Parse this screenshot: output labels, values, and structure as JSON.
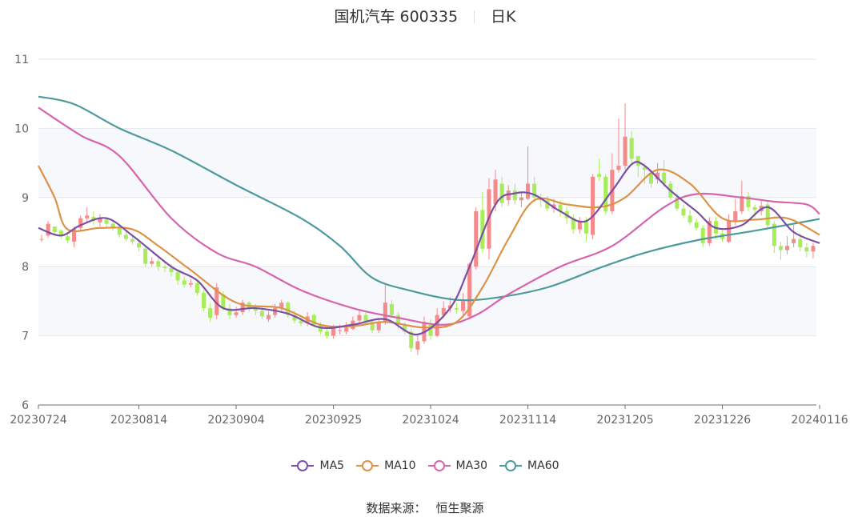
{
  "title": {
    "stock": "国机汽车 600335",
    "period": "日K"
  },
  "source": {
    "label": "数据来源：",
    "value": "恒生聚源"
  },
  "colors": {
    "up": "#f48a8a",
    "down": "#a8ec5a",
    "MA5": "#7b4fa6",
    "MA10": "#dd9245",
    "MA30": "#d566ad",
    "MA60": "#4e9a9c"
  },
  "chart_data": {
    "type": "candlestick",
    "ylim": [
      6,
      11
    ],
    "yticks": [
      6,
      7,
      8,
      9,
      10,
      11
    ],
    "xticks": [
      "20230724",
      "20230814",
      "20230904",
      "20230925",
      "20231024",
      "20231114",
      "20231205",
      "20231226",
      "20240116"
    ],
    "xtick_index": [
      0,
      15,
      30,
      45,
      60,
      75,
      90,
      105,
      120
    ],
    "legend": [
      "MA5",
      "MA10",
      "MA30",
      "MA60"
    ],
    "ohlc": [
      [
        8.4,
        8.4,
        8.46,
        8.36
      ],
      [
        8.45,
        8.62,
        8.66,
        8.42
      ],
      [
        8.58,
        8.5,
        8.58,
        8.44
      ],
      [
        8.52,
        8.46,
        8.54,
        8.4
      ],
      [
        8.44,
        8.38,
        8.48,
        8.34
      ],
      [
        8.36,
        8.54,
        8.58,
        8.28
      ],
      [
        8.56,
        8.7,
        8.74,
        8.52
      ],
      [
        8.7,
        8.74,
        8.86,
        8.64
      ],
      [
        8.72,
        8.66,
        8.8,
        8.6
      ],
      [
        8.64,
        8.7,
        8.76,
        8.58
      ],
      [
        8.68,
        8.62,
        8.72,
        8.56
      ],
      [
        8.62,
        8.56,
        8.68,
        8.52
      ],
      [
        8.56,
        8.46,
        8.62,
        8.42
      ],
      [
        8.46,
        8.4,
        8.52,
        8.36
      ],
      [
        8.4,
        8.36,
        8.46,
        8.32
      ],
      [
        8.34,
        8.28,
        8.4,
        8.22
      ],
      [
        8.26,
        8.04,
        8.3,
        8.0
      ],
      [
        8.04,
        8.08,
        8.14,
        8.0
      ],
      [
        8.08,
        8.0,
        8.12,
        7.94
      ],
      [
        8.0,
        7.98,
        8.06,
        7.92
      ],
      [
        7.98,
        7.92,
        8.04,
        7.86
      ],
      [
        7.92,
        7.8,
        7.96,
        7.74
      ],
      [
        7.8,
        7.74,
        7.86,
        7.7
      ],
      [
        7.74,
        7.76,
        7.82,
        7.7
      ],
      [
        7.76,
        7.62,
        7.8,
        7.58
      ],
      [
        7.62,
        7.4,
        7.66,
        7.36
      ],
      [
        7.4,
        7.26,
        7.48,
        7.2
      ],
      [
        7.3,
        7.7,
        7.76,
        7.24
      ],
      [
        7.6,
        7.4,
        7.64,
        7.36
      ],
      [
        7.4,
        7.3,
        7.46,
        7.24
      ],
      [
        7.3,
        7.34,
        7.42,
        7.26
      ],
      [
        7.34,
        7.48,
        7.52,
        7.3
      ],
      [
        7.48,
        7.4,
        7.5,
        7.34
      ],
      [
        7.4,
        7.36,
        7.46,
        7.3
      ],
      [
        7.36,
        7.28,
        7.42,
        7.24
      ],
      [
        7.24,
        7.3,
        7.36,
        7.2
      ],
      [
        7.3,
        7.4,
        7.46,
        7.26
      ],
      [
        7.4,
        7.48,
        7.52,
        7.36
      ],
      [
        7.48,
        7.3,
        7.5,
        7.26
      ],
      [
        7.3,
        7.22,
        7.36,
        7.18
      ],
      [
        7.22,
        7.18,
        7.28,
        7.14
      ],
      [
        7.18,
        7.28,
        7.34,
        7.14
      ],
      [
        7.3,
        7.16,
        7.32,
        7.12
      ],
      [
        7.16,
        7.06,
        7.2,
        7.02
      ],
      [
        7.06,
        7.0,
        7.12,
        6.96
      ],
      [
        7.0,
        7.12,
        7.16,
        6.96
      ],
      [
        7.08,
        7.08,
        7.16,
        7.02
      ],
      [
        7.06,
        7.12,
        7.2,
        7.02
      ],
      [
        7.1,
        7.22,
        7.28,
        7.08
      ],
      [
        7.22,
        7.3,
        7.36,
        7.18
      ],
      [
        7.3,
        7.2,
        7.36,
        7.16
      ],
      [
        7.2,
        7.08,
        7.24,
        7.04
      ],
      [
        7.08,
        7.2,
        7.26,
        7.04
      ],
      [
        7.2,
        7.48,
        7.76,
        7.16
      ],
      [
        7.46,
        7.3,
        7.52,
        7.26
      ],
      [
        7.3,
        7.16,
        7.34,
        7.1
      ],
      [
        7.16,
        7.06,
        7.2,
        7.02
      ],
      [
        7.06,
        6.82,
        7.1,
        6.76
      ],
      [
        6.8,
        6.92,
        7.0,
        6.72
      ],
      [
        6.92,
        7.2,
        7.28,
        6.88
      ],
      [
        7.16,
        7.0,
        7.24,
        6.94
      ],
      [
        7.0,
        7.3,
        7.4,
        6.98
      ],
      [
        7.3,
        7.4,
        7.5,
        7.26
      ],
      [
        7.4,
        7.44,
        7.56,
        7.34
      ],
      [
        7.4,
        7.38,
        7.48,
        7.32
      ],
      [
        7.36,
        7.5,
        7.62,
        7.3
      ],
      [
        7.28,
        8.04,
        8.06,
        7.24
      ],
      [
        8.0,
        8.8,
        8.86,
        7.96
      ],
      [
        8.82,
        8.26,
        9.08,
        8.2
      ],
      [
        8.26,
        9.12,
        9.28,
        8.1
      ],
      [
        8.9,
        9.26,
        9.4,
        8.8
      ],
      [
        9.2,
        8.92,
        9.3,
        8.86
      ],
      [
        8.96,
        9.1,
        9.18,
        8.88
      ],
      [
        9.1,
        8.96,
        9.2,
        8.9
      ],
      [
        8.96,
        9.0,
        9.06,
        8.86
      ],
      [
        8.98,
        9.2,
        9.74,
        8.96
      ],
      [
        9.2,
        9.0,
        9.3,
        8.94
      ],
      [
        9.0,
        8.96,
        9.06,
        8.86
      ],
      [
        8.96,
        8.84,
        9.02,
        8.8
      ],
      [
        8.84,
        8.9,
        8.98,
        8.78
      ],
      [
        8.9,
        8.8,
        8.96,
        8.72
      ],
      [
        8.8,
        8.7,
        8.86,
        8.62
      ],
      [
        8.7,
        8.54,
        8.76,
        8.48
      ],
      [
        8.54,
        8.66,
        8.72,
        8.48
      ],
      [
        8.66,
        8.48,
        8.72,
        8.36
      ],
      [
        8.46,
        9.3,
        9.34,
        8.4
      ],
      [
        9.34,
        9.3,
        9.56,
        9.24
      ],
      [
        9.3,
        8.8,
        9.34,
        8.76
      ],
      [
        8.8,
        9.4,
        9.64,
        8.76
      ],
      [
        9.4,
        9.46,
        10.14,
        9.36
      ],
      [
        9.46,
        9.88,
        10.36,
        9.4
      ],
      [
        9.86,
        9.56,
        9.96,
        9.5
      ],
      [
        9.6,
        9.46,
        9.52,
        9.3
      ],
      [
        9.44,
        9.4,
        9.5,
        9.2
      ],
      [
        9.36,
        9.2,
        9.4,
        9.14
      ],
      [
        9.26,
        9.36,
        9.5,
        9.2
      ],
      [
        9.36,
        9.2,
        9.54,
        9.16
      ],
      [
        9.2,
        9.0,
        9.24,
        8.96
      ],
      [
        9.0,
        8.84,
        9.06,
        8.8
      ],
      [
        8.84,
        8.74,
        8.9,
        8.7
      ],
      [
        8.74,
        8.64,
        8.82,
        8.6
      ],
      [
        8.64,
        8.56,
        8.7,
        8.52
      ],
      [
        8.56,
        8.34,
        8.6,
        8.28
      ],
      [
        8.34,
        8.66,
        8.72,
        8.3
      ],
      [
        8.66,
        8.48,
        8.72,
        8.4
      ],
      [
        8.48,
        8.4,
        8.54,
        8.36
      ],
      [
        8.36,
        8.66,
        8.76,
        8.34
      ],
      [
        8.66,
        8.8,
        8.98,
        8.6
      ],
      [
        8.8,
        9.02,
        9.24,
        8.76
      ],
      [
        9.02,
        8.86,
        9.08,
        8.8
      ],
      [
        8.86,
        8.82,
        8.9,
        8.7
      ],
      [
        8.8,
        8.88,
        8.96,
        8.74
      ],
      [
        8.9,
        8.6,
        8.94,
        8.54
      ],
      [
        8.62,
        8.3,
        8.66,
        8.2
      ],
      [
        8.3,
        8.24,
        8.36,
        8.1
      ],
      [
        8.24,
        8.3,
        8.44,
        8.18
      ],
      [
        8.34,
        8.4,
        8.6,
        8.28
      ],
      [
        8.4,
        8.28,
        8.48,
        8.22
      ],
      [
        8.28,
        8.22,
        8.34,
        8.14
      ],
      [
        8.22,
        8.3,
        8.34,
        8.12
      ]
    ],
    "ma": {
      "MA5": [
        [
          0,
          8.56
        ],
        [
          3,
          8.45
        ],
        [
          6,
          8.6
        ],
        [
          10,
          8.7
        ],
        [
          14,
          8.45
        ],
        [
          20,
          8.0
        ],
        [
          24,
          7.8
        ],
        [
          28,
          7.4
        ],
        [
          33,
          7.4
        ],
        [
          38,
          7.32
        ],
        [
          43,
          7.12
        ],
        [
          48,
          7.16
        ],
        [
          53,
          7.24
        ],
        [
          58,
          7.02
        ],
        [
          63,
          7.4
        ],
        [
          66,
          8.0
        ],
        [
          70,
          8.9
        ],
        [
          73,
          9.06
        ],
        [
          76,
          9.04
        ],
        [
          80,
          8.8
        ],
        [
          84,
          8.66
        ],
        [
          88,
          9.1
        ],
        [
          91,
          9.48
        ],
        [
          93,
          9.46
        ],
        [
          97,
          9.1
        ],
        [
          101,
          8.8
        ],
        [
          104,
          8.56
        ],
        [
          108,
          8.6
        ],
        [
          112,
          8.86
        ],
        [
          116,
          8.5
        ],
        [
          120,
          8.34
        ]
      ],
      "MA10": [
        [
          0,
          9.46
        ],
        [
          2,
          9.0
        ],
        [
          4,
          8.54
        ],
        [
          9,
          8.56
        ],
        [
          14,
          8.54
        ],
        [
          18,
          8.3
        ],
        [
          23,
          7.95
        ],
        [
          30,
          7.48
        ],
        [
          37,
          7.4
        ],
        [
          43,
          7.16
        ],
        [
          48,
          7.14
        ],
        [
          53,
          7.2
        ],
        [
          59,
          7.12
        ],
        [
          64,
          7.2
        ],
        [
          68,
          7.7
        ],
        [
          72,
          8.4
        ],
        [
          76,
          8.96
        ],
        [
          81,
          8.9
        ],
        [
          86,
          8.86
        ],
        [
          90,
          9.0
        ],
        [
          95,
          9.4
        ],
        [
          100,
          9.2
        ],
        [
          105,
          8.7
        ],
        [
          110,
          8.68
        ],
        [
          115,
          8.7
        ],
        [
          120,
          8.46
        ]
      ],
      "MA30": [
        [
          0,
          10.3
        ],
        [
          6,
          9.9
        ],
        [
          12,
          9.6
        ],
        [
          20,
          8.7
        ],
        [
          27,
          8.2
        ],
        [
          33,
          8.0
        ],
        [
          40,
          7.66
        ],
        [
          48,
          7.4
        ],
        [
          55,
          7.26
        ],
        [
          62,
          7.16
        ],
        [
          67,
          7.3
        ],
        [
          72,
          7.6
        ],
        [
          80,
          8.0
        ],
        [
          88,
          8.3
        ],
        [
          96,
          8.86
        ],
        [
          101,
          9.05
        ],
        [
          108,
          9.0
        ],
        [
          113,
          8.94
        ],
        [
          118,
          8.9
        ],
        [
          120,
          8.76
        ]
      ],
      "MA60": [
        [
          0,
          10.46
        ],
        [
          5,
          10.35
        ],
        [
          12,
          10.0
        ],
        [
          20,
          9.68
        ],
        [
          30,
          9.18
        ],
        [
          40,
          8.7
        ],
        [
          46,
          8.3
        ],
        [
          51,
          7.84
        ],
        [
          57,
          7.65
        ],
        [
          64,
          7.52
        ],
        [
          70,
          7.55
        ],
        [
          78,
          7.7
        ],
        [
          86,
          7.98
        ],
        [
          93,
          8.2
        ],
        [
          101,
          8.38
        ],
        [
          110,
          8.52
        ],
        [
          120,
          8.69
        ]
      ]
    }
  }
}
